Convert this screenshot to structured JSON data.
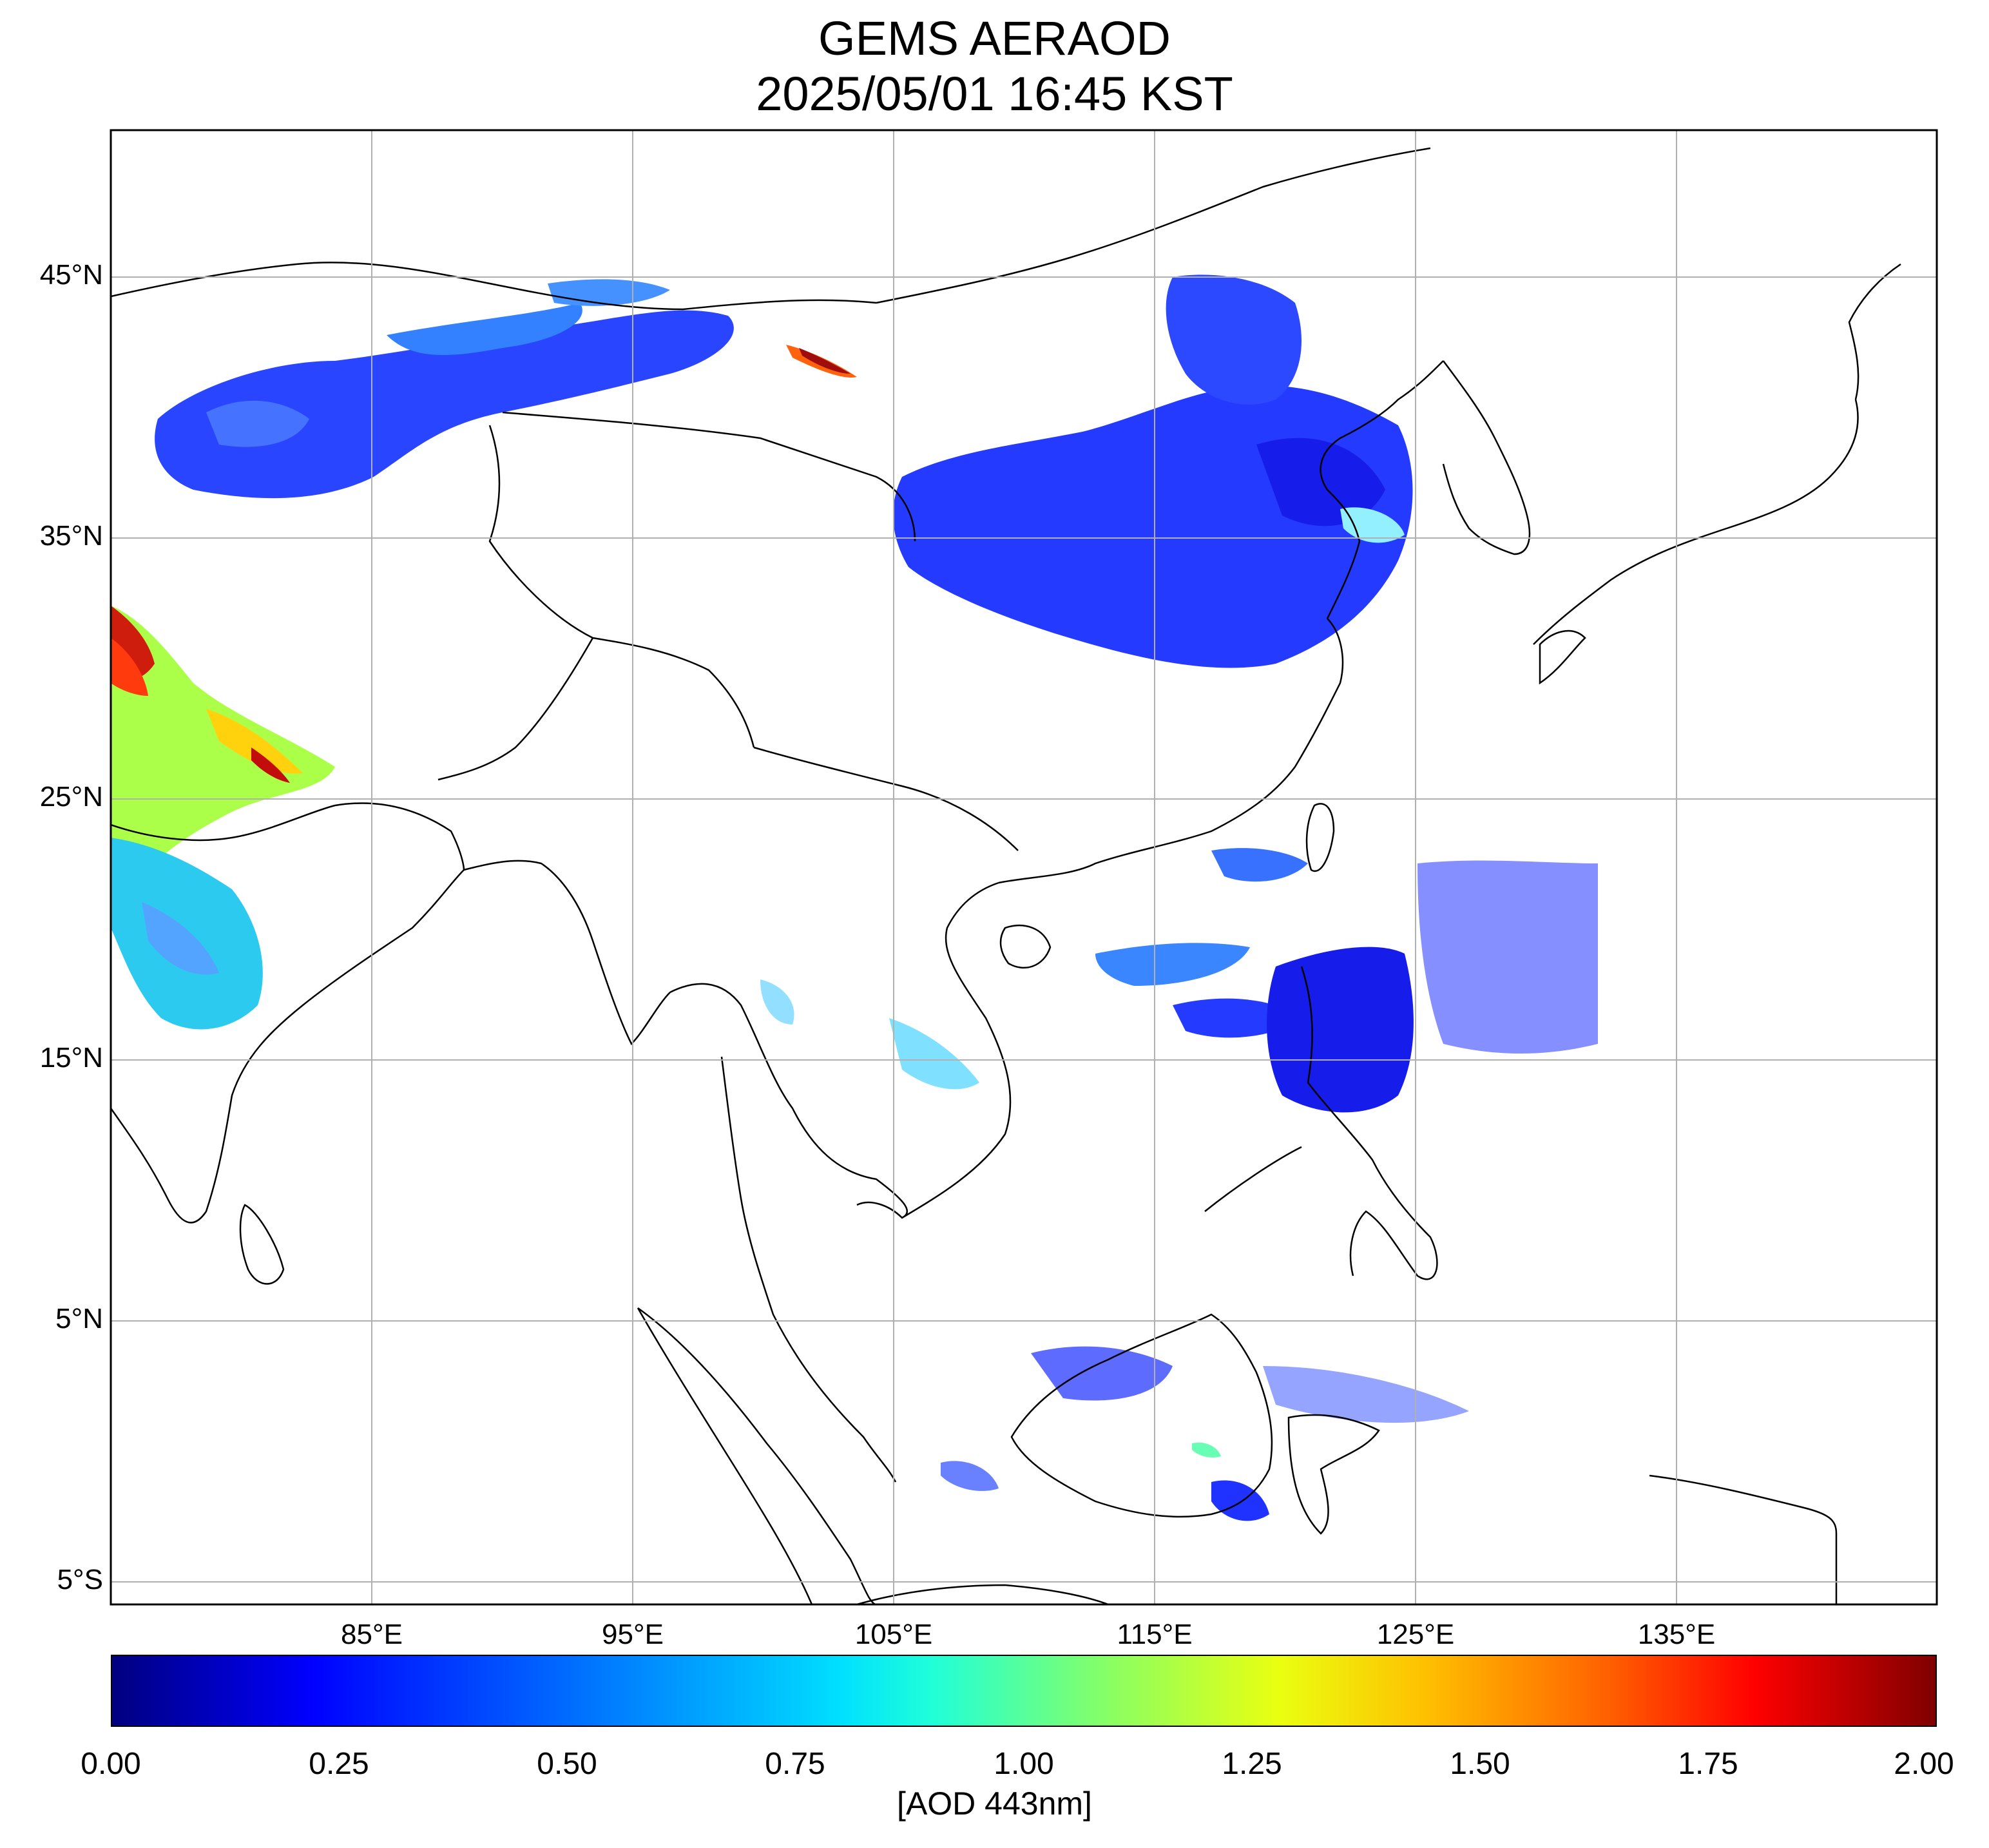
{
  "header": {
    "title": "GEMS AERAOD",
    "subtitle": "2025/05/01 16:45 KST"
  },
  "map": {
    "lon_range": [
      75,
      145
    ],
    "lat_range": [
      -6,
      50.5
    ],
    "lat_ticks": [
      {
        "value": 45,
        "label": "45°N"
      },
      {
        "value": 35,
        "label": "35°N"
      },
      {
        "value": 25,
        "label": "25°N"
      },
      {
        "value": 15,
        "label": "15°N"
      },
      {
        "value": 5,
        "label": "5°N"
      },
      {
        "value": -5,
        "label": "5°S"
      }
    ],
    "lon_ticks": [
      {
        "value": 85,
        "label": "85°E"
      },
      {
        "value": 95,
        "label": "95°E"
      },
      {
        "value": 105,
        "label": "105°E"
      },
      {
        "value": 115,
        "label": "115°E"
      },
      {
        "value": 125,
        "label": "125°E"
      },
      {
        "value": 135,
        "label": "135°E"
      }
    ],
    "grid": true
  },
  "colorbar": {
    "range": [
      0,
      2
    ],
    "colormap": "jet",
    "ticks": [
      "0.00",
      "0.25",
      "0.50",
      "0.75",
      "1.00",
      "1.25",
      "1.50",
      "1.75",
      "2.00"
    ],
    "label": "[AOD 443nm]",
    "colors": [
      "#00007f",
      "#0000ff",
      "#007fff",
      "#00ffff",
      "#7fff7f",
      "#ffff00",
      "#ff7f00",
      "#ff0000",
      "#7f0000"
    ]
  }
}
